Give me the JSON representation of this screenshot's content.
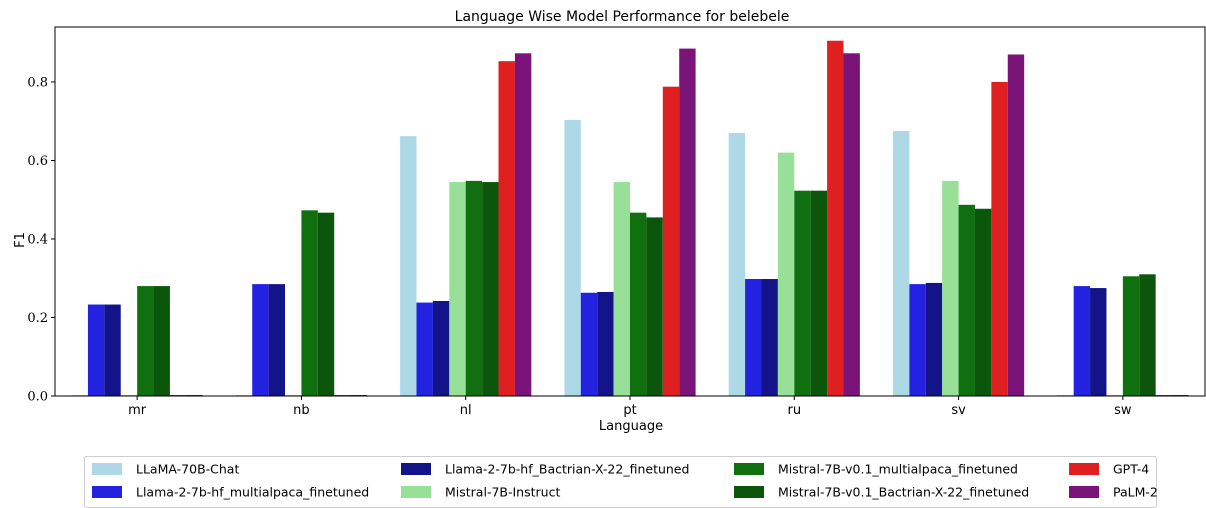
{
  "chart_data": {
    "type": "bar",
    "title": "Language Wise Model Performance for belebele",
    "xlabel": "Language",
    "ylabel": "F1",
    "ylim": [
      0,
      0.94
    ],
    "yticks": [
      "0.0",
      "0.2",
      "0.4",
      "0.6",
      "0.8"
    ],
    "ytick_values": [
      0.0,
      0.2,
      0.4,
      0.6,
      0.8
    ],
    "grid": false,
    "legend_position": "bottom",
    "categories": [
      "mr",
      "nb",
      "nl",
      "pt",
      "ru",
      "sv",
      "sw"
    ],
    "series": [
      {
        "name": "LLaMA-70B-Chat",
        "color": "#add8e6",
        "values": [
          0,
          0,
          0.662,
          0.703,
          0.67,
          0.675,
          0
        ]
      },
      {
        "name": "Llama-2-7b-hf_multialpaca_finetuned",
        "color": "#2222e0",
        "values": [
          0.233,
          0.285,
          0.238,
          0.263,
          0.298,
          0.285,
          0.28
        ]
      },
      {
        "name": "Llama-2-7b-hf_Bactrian-X-22_finetuned",
        "color": "#14148a",
        "values": [
          0.233,
          0.285,
          0.242,
          0.265,
          0.298,
          0.288,
          0.275
        ]
      },
      {
        "name": "Mistral-7B-Instruct",
        "color": "#98e098",
        "values": [
          0,
          0,
          0.545,
          0.545,
          0.62,
          0.548,
          0
        ]
      },
      {
        "name": "Mistral-7B-v0.1_multialpaca_finetuned",
        "color": "#107010",
        "values": [
          0.28,
          0.473,
          0.548,
          0.467,
          0.523,
          0.487,
          0.305
        ]
      },
      {
        "name": "Mistral-7B-v0.1_Bactrian-X-22_finetuned",
        "color": "#0b560b",
        "values": [
          0.28,
          0.467,
          0.545,
          0.455,
          0.523,
          0.477,
          0.31
        ]
      },
      {
        "name": "GPT-4",
        "color": "#e02020",
        "values": [
          0,
          0,
          0.853,
          0.788,
          0.905,
          0.8,
          0
        ]
      },
      {
        "name": "PaLM-2",
        "color": "#7a1478",
        "values": [
          0,
          0,
          0.873,
          0.885,
          0.873,
          0.87,
          0
        ]
      }
    ]
  }
}
